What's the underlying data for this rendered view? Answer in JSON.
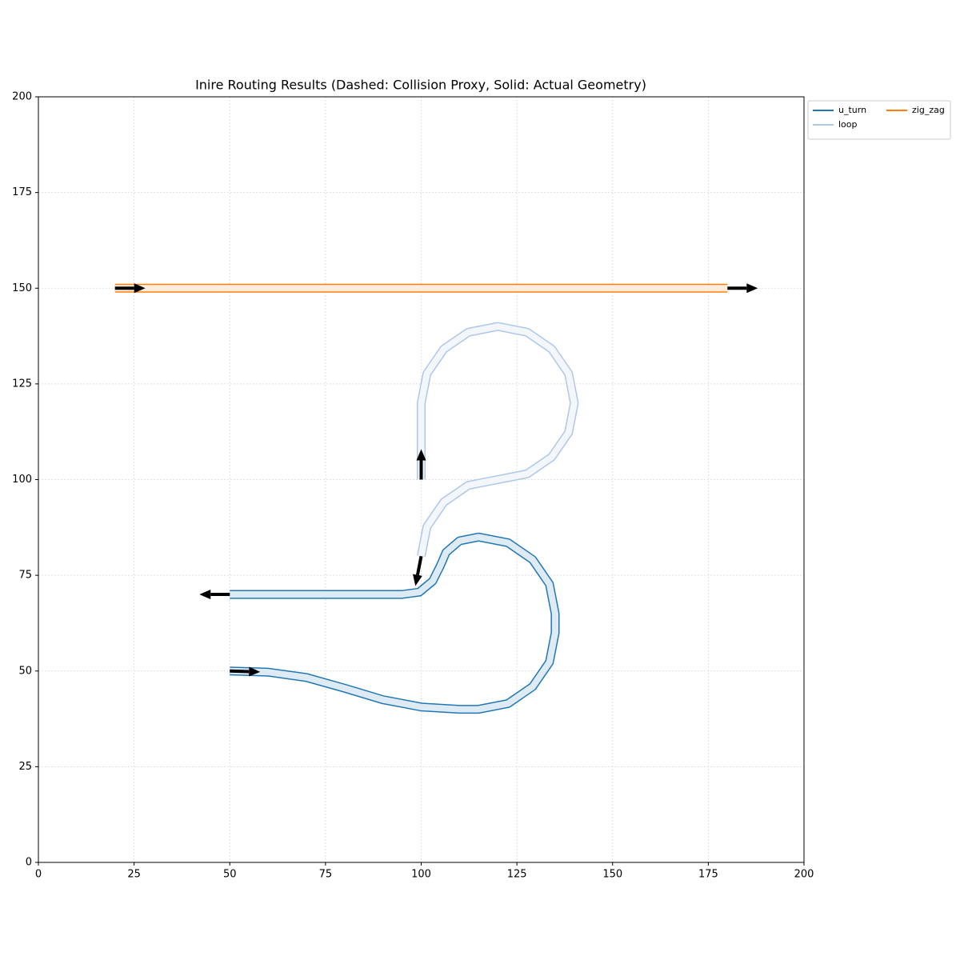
{
  "chart_data": {
    "type": "line",
    "title": "Inire Routing Results (Dashed: Collision Proxy, Solid: Actual Geometry)",
    "xlim": [
      0,
      200
    ],
    "ylim": [
      0,
      200
    ],
    "xticks": [
      0,
      25,
      50,
      75,
      100,
      125,
      150,
      175,
      200
    ],
    "yticks": [
      0,
      25,
      50,
      75,
      100,
      125,
      150,
      175,
      200
    ],
    "grid": true,
    "legend": "outside-upper-right",
    "series": [
      {
        "name": "u_turn",
        "color": "#1f77b4",
        "x": [
          50,
          60,
          70,
          80,
          90,
          100,
          110,
          115,
          122.7,
          129.1,
          133.5,
          135,
          135,
          133.5,
          129.1,
          122.7,
          115,
          110,
          106.5,
          105,
          103,
          99.5,
          95,
          50
        ],
        "y": [
          50,
          49.7,
          48.3,
          45.5,
          42.5,
          40.6,
          40,
          40,
          41.5,
          45.9,
          52.3,
          60,
          65,
          72.7,
          79.1,
          83.5,
          85,
          84,
          81,
          77.5,
          73.5,
          70.6,
          70,
          70
        ]
      },
      {
        "name": "loop",
        "color": "#aec7e8",
        "x": [
          100,
          100,
          101.5,
          105.9,
          112.3,
          120,
          127.7,
          134.1,
          138.5,
          140,
          138.5,
          134.1,
          127.7,
          120,
          112.3,
          105.9,
          101.5,
          100
        ],
        "y": [
          100,
          120,
          127.7,
          134.1,
          138.5,
          140,
          138.5,
          134.1,
          127.7,
          120,
          112.3,
          105.9,
          101.5,
          100,
          98.5,
          94.1,
          87.7,
          80
        ]
      },
      {
        "name": "zig_zag",
        "color": "#ff7f0e",
        "x": [
          20,
          180
        ],
        "y": [
          150,
          150
        ]
      }
    ]
  }
}
